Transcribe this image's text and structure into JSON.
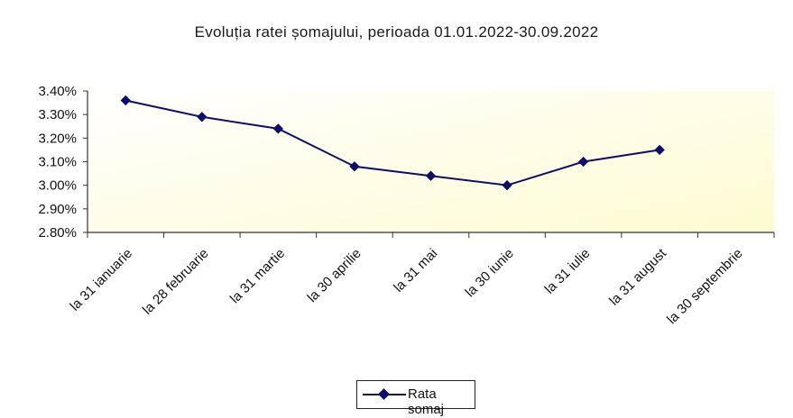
{
  "chart_data": {
    "type": "line",
    "title": "Evoluția ratei șomajului, perioada 01.01.2022-30.09.2022",
    "categories": [
      "la 31 ianuarie",
      "la 28 februarie",
      "la 31 martie",
      "la 30 aprilie",
      "la 31 mai",
      "la 30 iunie",
      "la 31 iulie",
      "la 31 august",
      "la 30 septembrie"
    ],
    "series": [
      {
        "name": "Rata somaj",
        "values": [
          3.36,
          3.29,
          3.24,
          3.08,
          3.04,
          3.0,
          3.1,
          3.15,
          null
        ],
        "color": "#0d0d6b"
      }
    ],
    "yticks": [
      "2.80%",
      "2.90%",
      "3.00%",
      "3.10%",
      "3.20%",
      "3.30%",
      "3.40%"
    ],
    "ylim": [
      2.8,
      3.4
    ],
    "grid": false,
    "legend_position": "bottom",
    "plot_background": "#fdfbd5"
  }
}
